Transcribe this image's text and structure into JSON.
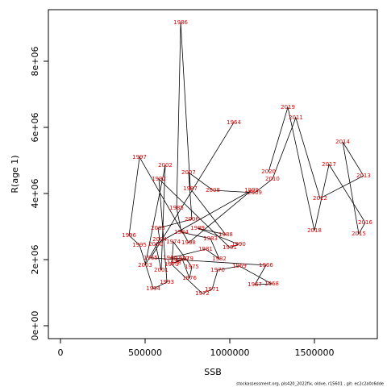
{
  "chart_data": {
    "type": "scatter",
    "x_label": "SSB",
    "y_label": "R(age 1)",
    "footer": "stockassessment.org, pls420_2022fix, oldve, r15601 , git: ec2c2a0c6dde",
    "xlim": [
      -71429,
      1871429
    ],
    "ylim": [
      -390000,
      9560000
    ],
    "xticks": [
      0,
      500000,
      1000000,
      1500000
    ],
    "yticks": [
      {
        "value": 0,
        "label": "0e+00"
      },
      {
        "value": 2000000,
        "label": "2e+06"
      },
      {
        "value": 4000000,
        "label": "4e+06"
      },
      {
        "value": 6000000,
        "label": "6e+06"
      },
      {
        "value": 8000000,
        "label": "8e+06"
      }
    ],
    "series": [
      {
        "color": "#000000",
        "label_color": "#e00000",
        "labels": [
          "1964",
          "1965",
          "1966",
          "1967",
          "1968",
          "1969",
          "1970",
          "1971",
          "1972",
          "1973",
          "1974",
          "1975",
          "1976",
          "1977",
          "1978",
          "1979",
          "1980",
          "1981",
          "1982",
          "1983",
          "1984",
          "1985",
          "1986",
          "1987",
          "1988",
          "1989",
          "1990",
          "1991",
          "1992",
          "1993",
          "1994",
          "1995",
          "1996",
          "1997",
          "1998",
          "1999",
          "2000",
          "2001",
          "2002",
          "2003",
          "2004",
          "2005",
          "2006",
          "2007",
          "2008",
          "2009",
          "2010",
          "2011",
          "2012",
          "2013",
          "2014",
          "2015",
          "2016",
          "2017",
          "2018",
          "2019",
          "2020"
        ],
        "x": [
          1024000,
          533000,
          1214000,
          1148000,
          1248000,
          1057000,
          929000,
          895000,
          838000,
          657000,
          667000,
          776000,
          762000,
          719000,
          671000,
          743000,
          648000,
          857000,
          938000,
          886000,
          714000,
          686000,
          710000,
          767000,
          976000,
          810000,
          1052000,
          1000000,
          581000,
          629000,
          548000,
          467000,
          405000,
          467000,
          757000,
          1129000,
          562000,
          595000,
          619000,
          500000,
          586000,
          576000,
          776000,
          757000,
          900000,
          1148000,
          1252000,
          1390000,
          1533000,
          1790000,
          1667000,
          1762000,
          1800000,
          1586000,
          1500000,
          1343000,
          1229000
        ],
        "values": [
          6150000,
          2050000,
          1829000,
          1244000,
          1268000,
          1805000,
          1683000,
          1098000,
          976000,
          1854000,
          2537000,
          1780000,
          1439000,
          2024000,
          1902000,
          2024000,
          2049000,
          2317000,
          2024000,
          2634000,
          2829000,
          3561000,
          9171000,
          4146000,
          2756000,
          2951000,
          2463000,
          2366000,
          4439000,
          1317000,
          1122000,
          2439000,
          2732000,
          5098000,
          2512000,
          4098000,
          2463000,
          1683000,
          4854000,
          1829000,
          2610000,
          2951000,
          3220000,
          4634000,
          4098000,
          4024000,
          4439000,
          6293000,
          3854000,
          4537000,
          5561000,
          2780000,
          3122000,
          4878000,
          2878000,
          6610000,
          4659000
        ]
      }
    ]
  }
}
